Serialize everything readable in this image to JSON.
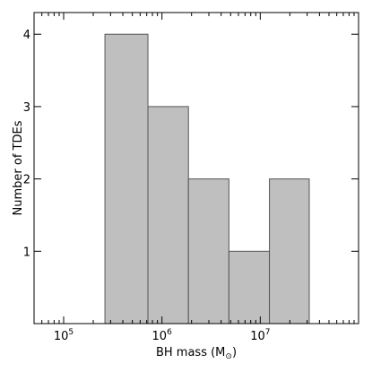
{
  "chart_data": {
    "type": "bar",
    "subtype": "histogram",
    "xscale": "log",
    "xlabel": {
      "text": "BH mass (M",
      "sub": "⊙",
      "close": ")"
    },
    "ylabel": "Number of TDEs",
    "xlim": [
      50000,
      100000000
    ],
    "ylim": [
      0,
      4.3
    ],
    "xticks": [
      {
        "value": 100000,
        "base": "10",
        "exp": "5"
      },
      {
        "value": 1000000,
        "base": "10",
        "exp": "6"
      },
      {
        "value": 10000000,
        "base": "10",
        "exp": "7"
      }
    ],
    "yticks": [
      1,
      2,
      3,
      4
    ],
    "bins": [
      {
        "x0": 263000,
        "x1": 720000,
        "count": 4
      },
      {
        "x0": 720000,
        "x1": 1860000,
        "count": 3
      },
      {
        "x0": 1860000,
        "x1": 4800000,
        "count": 2
      },
      {
        "x0": 4800000,
        "x1": 12400000,
        "count": 1
      },
      {
        "x0": 12400000,
        "x1": 31500000,
        "count": 2
      }
    ],
    "bar_color": "#bfbfbf",
    "edge_color": "#555555",
    "grid": false
  }
}
